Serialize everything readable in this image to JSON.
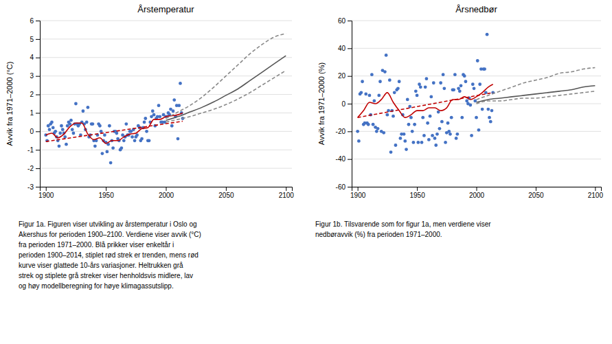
{
  "chart_data": [
    {
      "type": "line",
      "title": "Årstemperatur",
      "y_label": "Avvik fra 1971–2000 (°C)",
      "xlim": [
        1895,
        2105
      ],
      "ylim": [
        -3,
        6
      ],
      "xticks": [
        1900,
        1950,
        2000,
        2050,
        2100
      ],
      "yticks": [
        -3,
        -2,
        -1,
        0,
        1,
        2,
        3,
        4,
        5,
        6
      ],
      "grid": "y",
      "caption": "Figur 1a. Figuren viser utvikling av årstemperatur i Oslo og\nAkershus for perioden 1900–2100. Verdiene viser avvik (°C)\nfra perioden 1971–2000. Blå prikker viser enkeltår i\nperioden 1900–2014, stiplet rød strek er trenden, mens rød\nkurve viser glattede 10-års variasjoner. Heltrukken grå\nstrek og stiplete grå streker viser henholdsvis midlere, lav\nog høy modellberegning for høye klimagassutslipp.",
      "series": [
        {
          "type": "scatter",
          "color": "#4472c4",
          "marker": "circle",
          "x": [
            1900,
            1901,
            1902,
            1903,
            1904,
            1905,
            1906,
            1907,
            1908,
            1909,
            1910,
            1911,
            1912,
            1913,
            1914,
            1915,
            1916,
            1917,
            1918,
            1919,
            1920,
            1921,
            1922,
            1923,
            1924,
            1925,
            1926,
            1927,
            1928,
            1929,
            1930,
            1931,
            1932,
            1933,
            1934,
            1935,
            1936,
            1937,
            1938,
            1939,
            1940,
            1941,
            1942,
            1943,
            1944,
            1945,
            1946,
            1947,
            1948,
            1949,
            1950,
            1951,
            1952,
            1953,
            1954,
            1955,
            1956,
            1957,
            1958,
            1959,
            1960,
            1961,
            1962,
            1963,
            1964,
            1965,
            1966,
            1967,
            1968,
            1969,
            1970,
            1971,
            1972,
            1973,
            1974,
            1975,
            1976,
            1977,
            1978,
            1979,
            1980,
            1981,
            1982,
            1983,
            1984,
            1985,
            1986,
            1987,
            1988,
            1989,
            1990,
            1991,
            1992,
            1993,
            1994,
            1995,
            1996,
            1997,
            1998,
            1999,
            2000,
            2001,
            2002,
            2003,
            2004,
            2005,
            2006,
            2007,
            2008,
            2009,
            2010,
            2011,
            2012,
            2013,
            2014
          ],
          "values": [
            -0.2,
            -0.5,
            0.3,
            0.1,
            0.4,
            0.5,
            0.2,
            -0.1,
            0.0,
            -0.3,
            -0.5,
            -0.8,
            -0.1,
            0.3,
            0.1,
            -0.1,
            -0.3,
            -0.7,
            0.3,
            0.5,
            0.4,
            0.6,
            0.1,
            -0.1,
            0.4,
            1.5,
            0.4,
            0.3,
            0.4,
            -0.2,
            0.5,
            1.1,
            0.4,
            0.1,
            0.5,
            1.3,
            -0.3,
            -0.2,
            0.4,
            0.4,
            -0.5,
            -0.8,
            -0.5,
            -0.2,
            0.4,
            0.3,
            0.0,
            -1.2,
            -0.5,
            -0.2,
            -0.6,
            -1.1,
            -0.7,
            0.3,
            -1.7,
            -0.5,
            -0.9,
            0.0,
            0.0,
            -0.1,
            -0.4,
            -0.5,
            -1.0,
            -0.9,
            -0.2,
            -0.5,
            -0.3,
            0.4,
            -0.2,
            -0.2,
            0.0,
            0.0,
            -0.3,
            0.1,
            -0.5,
            -0.3,
            -0.2,
            0.3,
            0.2,
            -0.5,
            -0.4,
            0.2,
            0.5,
            0.7,
            0.0,
            -0.5,
            -0.5,
            0.5,
            0.8,
            1.1,
            0.9,
            0.3,
            0.7,
            0.8,
            1.4,
            0.8,
            0.5,
            0.5,
            0.9,
            0.5,
            0.8,
            0.8,
            1.0,
            0.9,
            1.2,
            0.3,
            1.1,
            1.7,
            0.8,
            1.4,
            -0.4,
            1.4,
            2.6,
            1.0,
            0.7
          ]
        },
        {
          "type": "line",
          "color": "#c00000",
          "line_style": "dashed",
          "x": [
            1900,
            2014
          ],
          "values": [
            -0.55,
            0.55
          ]
        },
        {
          "type": "line",
          "color": "#c00000",
          "line_style": "solid",
          "x": [
            1900,
            1905,
            1910,
            1915,
            1920,
            1925,
            1930,
            1935,
            1940,
            1945,
            1950,
            1955,
            1960,
            1965,
            1970,
            1975,
            1980,
            1985,
            1990,
            1995,
            2000,
            2005,
            2010,
            2014
          ],
          "values": [
            -0.2,
            -0.1,
            -0.35,
            -0.15,
            0.25,
            0.45,
            0.45,
            -0.15,
            -0.45,
            -0.35,
            -0.65,
            -0.5,
            -0.5,
            -0.3,
            -0.15,
            -0.1,
            0.15,
            0.2,
            0.65,
            0.65,
            0.8,
            0.85,
            0.9,
            1.0
          ]
        },
        {
          "type": "line",
          "color": "#555555",
          "line_style": "solid",
          "x": [
            2000,
            2010,
            2020,
            2030,
            2040,
            2050,
            2060,
            2070,
            2080,
            2090,
            2100
          ],
          "values": [
            0.6,
            0.8,
            1.05,
            1.3,
            1.6,
            1.95,
            2.3,
            2.75,
            3.2,
            3.65,
            4.1
          ]
        },
        {
          "type": "line",
          "color": "#888888",
          "line_style": "dashed",
          "x": [
            2000,
            2010,
            2020,
            2030,
            2040,
            2050,
            2060,
            2070,
            2080,
            2090,
            2100
          ],
          "values": [
            0.5,
            0.65,
            0.8,
            1.0,
            1.2,
            1.45,
            1.75,
            2.1,
            2.5,
            2.9,
            3.3
          ]
        },
        {
          "type": "line",
          "color": "#888888",
          "line_style": "dashed",
          "x": [
            2000,
            2010,
            2020,
            2030,
            2040,
            2050,
            2060,
            2070,
            2080,
            2090,
            2100
          ],
          "values": [
            0.7,
            1.05,
            1.4,
            1.85,
            2.4,
            3.0,
            3.6,
            4.2,
            4.7,
            5.1,
            5.3
          ]
        }
      ]
    },
    {
      "type": "line",
      "title": "Årsnedbør",
      "y_label": "Avvik fra 1971–2000 (%)",
      "xlim": [
        1895,
        2105
      ],
      "ylim": [
        -60,
        60
      ],
      "xticks": [
        1900,
        1950,
        2000,
        2050,
        2100
      ],
      "yticks": [
        -60,
        -40,
        -20,
        0,
        20,
        40,
        60
      ],
      "grid": "y",
      "caption": "Figur 1b. Tilsvarende som for figur 1a, men verdiene viser\nnedbøravvik (%) fra perioden 1971–2000.",
      "series": [
        {
          "type": "scatter",
          "color": "#4472c4",
          "marker": "circle",
          "x": [
            1900,
            1901,
            1902,
            1903,
            1904,
            1905,
            1906,
            1907,
            1908,
            1909,
            1910,
            1911,
            1912,
            1913,
            1914,
            1915,
            1916,
            1917,
            1918,
            1919,
            1920,
            1921,
            1922,
            1923,
            1924,
            1925,
            1926,
            1927,
            1928,
            1929,
            1930,
            1931,
            1932,
            1933,
            1934,
            1935,
            1936,
            1937,
            1938,
            1939,
            1940,
            1941,
            1942,
            1943,
            1944,
            1945,
            1946,
            1947,
            1948,
            1949,
            1950,
            1951,
            1952,
            1953,
            1954,
            1955,
            1956,
            1957,
            1958,
            1959,
            1960,
            1961,
            1962,
            1963,
            1964,
            1965,
            1966,
            1967,
            1968,
            1969,
            1970,
            1971,
            1972,
            1973,
            1974,
            1975,
            1976,
            1977,
            1978,
            1979,
            1980,
            1981,
            1982,
            1983,
            1984,
            1985,
            1986,
            1987,
            1988,
            1989,
            1990,
            1991,
            1992,
            1993,
            1994,
            1995,
            1996,
            1997,
            1998,
            1999,
            2000,
            2001,
            2002,
            2003,
            2004,
            2005,
            2006,
            2007,
            2008,
            2009,
            2010,
            2011,
            2012,
            2013,
            2014
          ],
          "values": [
            -20,
            -27,
            7,
            8,
            16,
            -15,
            -14,
            7,
            -14,
            -15,
            6,
            -8,
            21,
            -15,
            2,
            -17,
            -20,
            -18,
            6,
            16,
            -20,
            24,
            -21,
            23,
            35,
            -8,
            -5,
            17,
            -35,
            -5,
            -9,
            8,
            -30,
            10,
            11,
            16,
            -25,
            -22,
            -8,
            -22,
            -27,
            -33,
            3,
            -15,
            -2,
            -10,
            -20,
            -28,
            -15,
            9,
            6,
            -28,
            14,
            12,
            -28,
            -10,
            -23,
            12,
            18,
            -14,
            -26,
            -9,
            5,
            -23,
            15,
            -25,
            -30,
            -22,
            -6,
            -18,
            15,
            -13,
            21,
            11,
            -28,
            -21,
            -14,
            -20,
            -22,
            -10,
            10,
            10,
            21,
            -25,
            -22,
            11,
            9,
            13,
            -10,
            21,
            20,
            16,
            2,
            0,
            4,
            -1,
            -23,
            14,
            11,
            2,
            -10,
            31,
            -19,
            14,
            25,
            -4,
            25,
            25,
            8,
            50,
            -4,
            -10,
            -13,
            -5,
            8
          ]
        },
        {
          "type": "line",
          "color": "#c00000",
          "line_style": "dashed",
          "x": [
            1900,
            2014
          ],
          "values": [
            -10,
            8
          ]
        },
        {
          "type": "line",
          "color": "#c00000",
          "line_style": "solid",
          "x": [
            1900,
            1905,
            1910,
            1915,
            1920,
            1925,
            1930,
            1935,
            1940,
            1945,
            1950,
            1955,
            1960,
            1965,
            1970,
            1975,
            1980,
            1985,
            1990,
            1995,
            2000,
            2005,
            2010,
            2014
          ],
          "values": [
            -10,
            -5,
            1,
            0,
            3,
            8,
            1,
            -5,
            -10,
            -8,
            -5,
            -5,
            -3,
            -3,
            -5,
            -3,
            3,
            3,
            5,
            3,
            5,
            8,
            12,
            14
          ]
        },
        {
          "type": "line",
          "color": "#555555",
          "line_style": "solid",
          "x": [
            2000,
            2010,
            2020,
            2030,
            2040,
            2050,
            2060,
            2070,
            2080,
            2090,
            2100
          ],
          "values": [
            1,
            3,
            4,
            5,
            6,
            7,
            8,
            9,
            10,
            12,
            13
          ]
        },
        {
          "type": "line",
          "color": "#888888",
          "line_style": "dashed",
          "x": [
            2000,
            2010,
            2020,
            2030,
            2040,
            2050,
            2060,
            2070,
            2080,
            2090,
            2100
          ],
          "values": [
            0,
            2,
            2,
            3,
            4,
            4,
            5,
            6,
            7,
            8,
            9
          ]
        },
        {
          "type": "line",
          "color": "#888888",
          "line_style": "dashed",
          "x": [
            2000,
            2010,
            2020,
            2030,
            2040,
            2050,
            2060,
            2070,
            2080,
            2090,
            2100
          ],
          "values": [
            3,
            6,
            9,
            12,
            15,
            17,
            19,
            22,
            23,
            25,
            26
          ]
        }
      ]
    }
  ]
}
